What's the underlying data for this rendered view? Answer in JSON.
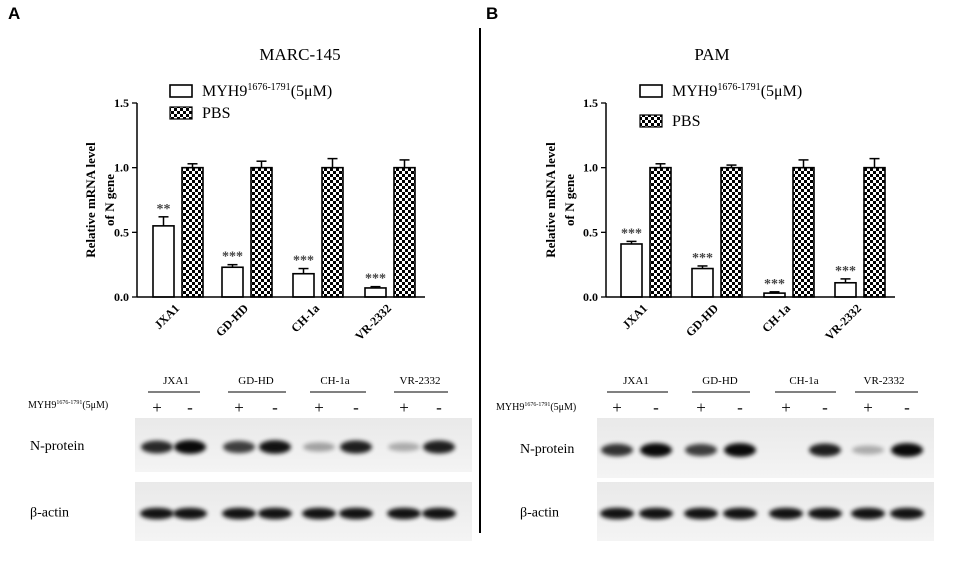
{
  "panels": [
    {
      "letter": "A",
      "title": "MARC-145",
      "y_label_line1": "Relative mRNA level",
      "y_label_line2": "of N gene",
      "blot_treatment_label_main": "MYH9",
      "blot_treatment_label_sup": "1676-1791",
      "blot_treatment_label_tail": "(5μM)",
      "signs": [
        "+",
        "-",
        "+",
        "-",
        "+",
        "-",
        "+",
        "-"
      ],
      "blot_rows": [
        "N-protein",
        "β-actin"
      ]
    },
    {
      "letter": "B",
      "title": "PAM",
      "y_label_line1": "Relative mRNA level",
      "y_label_line2": "of N gene",
      "blot_treatment_label_main": "MYH9",
      "blot_treatment_label_sup": "1676-1791",
      "blot_treatment_label_tail": "(5μM)",
      "signs": [
        "+",
        "-",
        "+",
        "-",
        "+",
        "-",
        "+",
        "-"
      ],
      "blot_rows": [
        "N-protein",
        "β-actin"
      ]
    }
  ],
  "chart_data": [
    {
      "type": "bar",
      "title": "MARC-145",
      "categories": [
        "JXA1",
        "GD-HD",
        "CH-1a",
        "VR-2332"
      ],
      "ylabel": "Relative mRNA level of N gene",
      "xlabel": "",
      "ylim": [
        0,
        1.5
      ],
      "yticks": [
        "0.0",
        "0.5",
        "1.0",
        "1.5"
      ],
      "legend_position": "top",
      "series": [
        {
          "name": "MYH9",
          "name_sup": "1676-1791",
          "name_tail": "(5μM)",
          "pattern": "open",
          "values": [
            0.55,
            0.23,
            0.18,
            0.07
          ],
          "errors": [
            0.07,
            0.02,
            0.04,
            0.01
          ],
          "significance": [
            "**",
            "***",
            "***",
            "***"
          ]
        },
        {
          "name": "PBS",
          "pattern": "checkered",
          "values": [
            1.0,
            1.0,
            1.0,
            1.0
          ],
          "errors": [
            0.03,
            0.05,
            0.07,
            0.06
          ]
        }
      ]
    },
    {
      "type": "bar",
      "title": "PAM",
      "categories": [
        "JXA1",
        "GD-HD",
        "CH-1a",
        "VR-2332"
      ],
      "ylabel": "Relative mRNA level of N gene",
      "xlabel": "",
      "ylim": [
        0,
        1.5
      ],
      "yticks": [
        "0.0",
        "0.5",
        "1.0",
        "1.5"
      ],
      "legend_position": "top",
      "series": [
        {
          "name": "MYH9",
          "name_sup": "1676-1791",
          "name_tail": "(5μM)",
          "pattern": "open",
          "values": [
            0.41,
            0.22,
            0.03,
            0.11
          ],
          "errors": [
            0.02,
            0.02,
            0.01,
            0.03
          ],
          "significance": [
            "***",
            "***",
            "***",
            "***"
          ]
        },
        {
          "name": "PBS",
          "pattern": "checkered",
          "values": [
            1.0,
            1.0,
            1.0,
            1.0
          ],
          "errors": [
            0.03,
            0.02,
            0.06,
            0.07
          ]
        }
      ]
    }
  ],
  "blots": [
    {
      "n_protein_intensity": [
        0.8,
        0.95,
        0.7,
        0.9,
        0.2,
        0.85,
        0.15,
        0.85
      ],
      "actin_intensity": [
        0.9,
        0.9,
        0.9,
        0.9,
        0.9,
        0.9,
        0.9,
        0.9
      ]
    },
    {
      "n_protein_intensity": [
        0.75,
        0.95,
        0.7,
        0.95,
        0.0,
        0.85,
        0.15,
        0.95
      ],
      "actin_intensity": [
        0.9,
        0.9,
        0.9,
        0.9,
        0.9,
        0.9,
        0.9,
        0.9
      ]
    }
  ]
}
